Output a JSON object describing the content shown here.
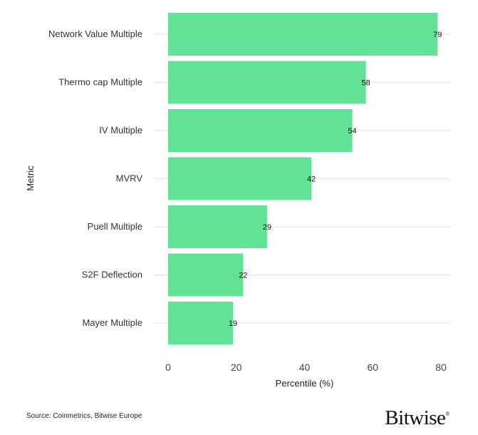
{
  "chart_data": {
    "type": "bar",
    "orientation": "horizontal",
    "categories": [
      "Network Value Multiple",
      "Thermo cap Multiple",
      "IV Multiple",
      "MVRV",
      "Puell Multiple",
      "S2F Deflection",
      "Mayer Multiple"
    ],
    "values": [
      79,
      58,
      54,
      42,
      29,
      22,
      19
    ],
    "data_labels": [
      "79",
      "58",
      "54",
      "42",
      "29",
      "22",
      "19"
    ],
    "xlabel": "Percentile (%)",
    "ylabel": "Metric",
    "xlim": [
      0,
      80
    ],
    "xticks": [
      0,
      20,
      40,
      60,
      80
    ],
    "xtick_labels": [
      "0",
      "20",
      "40",
      "60",
      "80"
    ],
    "grid": "horizontal lines at categories",
    "bar_color": "#62e296"
  },
  "footer": {
    "source": "Source: Coinmetrics, Bitwise Europe",
    "logo": "Bitwise",
    "logo_mark": "®"
  }
}
